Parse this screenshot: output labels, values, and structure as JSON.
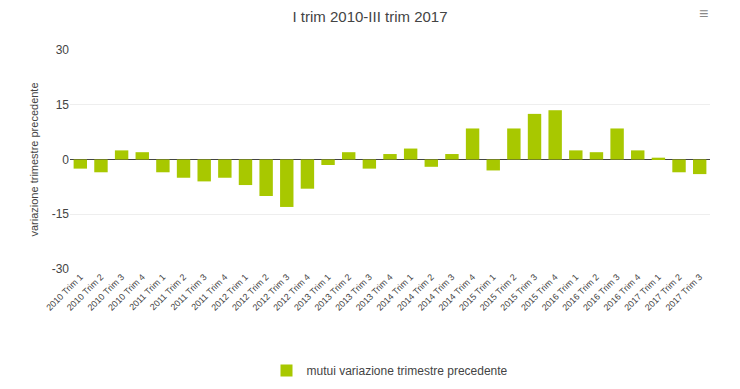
{
  "chart_data": {
    "type": "bar",
    "title": "I trim 2010-III trim 2017",
    "ylabel": "variazione trimestre precedente",
    "annotations": [
      "≡"
    ],
    "categories": [
      "2010 Trim 1",
      "2010 Trim 2",
      "2010 Trim 3",
      "2010 Trim 4",
      "2011 Trim 1",
      "2011 Trim 2",
      "2011 Trim 3",
      "2011 Trim 4",
      "2012 Trim 1",
      "2012 Trim 2",
      "2012 Trim 3",
      "2012 Trim 4",
      "2013 Trim 1",
      "2013 Trim 2",
      "2013 Trim 3",
      "2013 Trim 4",
      "2014 Trim 1",
      "2014 Trim 2",
      "2014 Trim 3",
      "2014 Trim 4",
      "2015 Trim 1",
      "2015 Trim 2",
      "2015 Trim 3",
      "2015 Trim 4",
      "2016 Trim 1",
      "2016 Trim 2",
      "2016 Trim 3",
      "2016 Trim 4",
      "2017 Trim 1",
      "2017 Trim 2",
      "2017 Trim 3"
    ],
    "series": [
      {
        "name": "mutui variazione trimestre precedente",
        "color": "#a8c800",
        "values": [
          -2.5,
          -3.5,
          2.5,
          2.0,
          -3.5,
          -5.0,
          -6.0,
          -5.0,
          -7.0,
          -10.0,
          -13.0,
          -8.0,
          -1.5,
          2.0,
          -2.5,
          1.5,
          3.0,
          -2.0,
          1.5,
          8.5,
          -3.0,
          8.5,
          12.5,
          13.5,
          2.5,
          2.0,
          8.5,
          2.5,
          0.5,
          -3.5,
          -4.0
        ]
      }
    ],
    "ylim": [
      -30,
      30
    ],
    "yticks": [
      -30,
      -15,
      0,
      15,
      30
    ],
    "grid": true,
    "legend": "bottom"
  }
}
